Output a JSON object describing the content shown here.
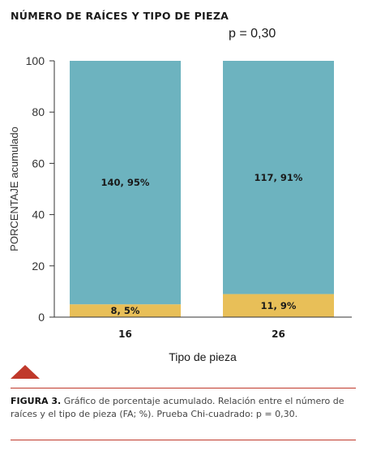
{
  "header": {
    "title": "NÚMERO DE RAÍCES Y TIPO DE PIEZA",
    "p_value": "p = 0,30"
  },
  "chart_data": {
    "type": "bar",
    "stacked": true,
    "categories": [
      "16",
      "26"
    ],
    "series": [
      {
        "values": [
          5,
          9
        ],
        "labels": [
          "8, 5%",
          "11, 9%"
        ],
        "color": "#e8bf58"
      },
      {
        "values": [
          95,
          91
        ],
        "labels": [
          "140, 95%",
          "117, 91%"
        ],
        "color": "#6db3bf"
      }
    ],
    "xlabel": "Tipo de pieza",
    "ylabel": "PORCENTAJE acumulado",
    "ylim": [
      0,
      100
    ],
    "yticks": [
      "0",
      "20",
      "40",
      "60",
      "80",
      "100"
    ],
    "grid": false
  },
  "caption": {
    "label": "FIGURA 3.",
    "text": " Gráfico de porcentaje acumulado. Relación entre el número de raíces y el tipo de pieza (FA; %). Prueba Chi-cuadrado: p = 0,30."
  },
  "colors": {
    "accent": "#c0392b"
  }
}
